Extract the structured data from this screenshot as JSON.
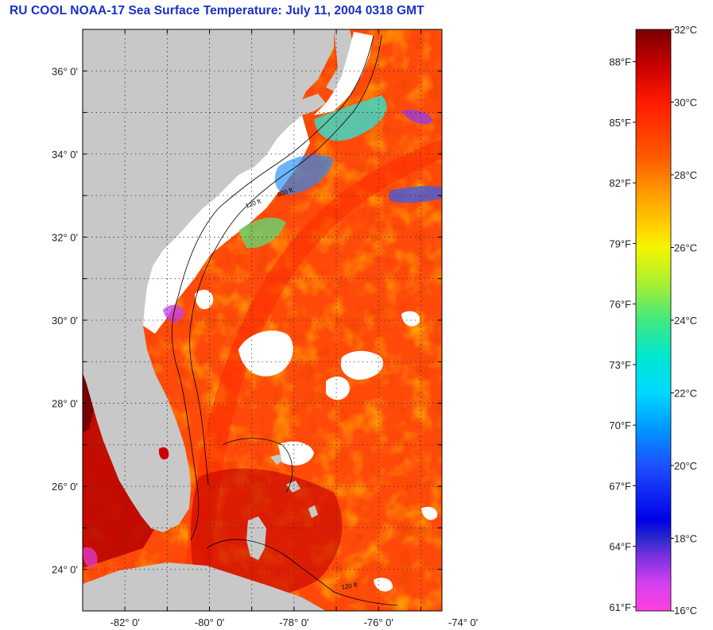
{
  "title": "RU COOL  NOAA-17  Sea Surface Temperature:  July 11, 2004 0318 GMT",
  "map": {
    "latitude_labels": [
      {
        "text": "36° 0'",
        "lat": 36
      },
      {
        "text": "34° 0'",
        "lat": 34
      },
      {
        "text": "32° 0'",
        "lat": 32
      },
      {
        "text": "30° 0'",
        "lat": 30
      },
      {
        "text": "28° 0'",
        "lat": 28
      },
      {
        "text": "26° 0'",
        "lat": 26
      },
      {
        "text": "24° 0'",
        "lat": 24
      }
    ],
    "longitude_labels": [
      {
        "text": "-82° 0'",
        "lon": -82
      },
      {
        "text": "-80° 0'",
        "lon": -80
      },
      {
        "text": "-78° 0'",
        "lon": -78
      },
      {
        "text": "-76° 0'",
        "lon": -76
      },
      {
        "text": "-74° 0'",
        "lon": -74
      }
    ],
    "lat_range": [
      23,
      37
    ],
    "lon_range": [
      -83,
      -74.5
    ],
    "grid": true,
    "land_color": "#c8c8c8",
    "cloud_color": "#ffffff",
    "contour_labels": [
      "120 ft",
      "600 ft"
    ]
  },
  "colorbar": {
    "celsius_labels": [
      {
        "text": "32°C",
        "value": 32
      },
      {
        "text": "30°C",
        "value": 30
      },
      {
        "text": "28°C",
        "value": 28
      },
      {
        "text": "26°C",
        "value": 26
      },
      {
        "text": "24°C",
        "value": 24
      },
      {
        "text": "22°C",
        "value": 22
      },
      {
        "text": "20°C",
        "value": 20
      },
      {
        "text": "18°C",
        "value": 18
      },
      {
        "text": "16°C",
        "value": 16
      }
    ],
    "fahrenheit_labels": [
      {
        "text": "88°F",
        "value": 88
      },
      {
        "text": "85°F",
        "value": 85
      },
      {
        "text": "82°F",
        "value": 82
      },
      {
        "text": "79°F",
        "value": 79
      },
      {
        "text": "76°F",
        "value": 76
      },
      {
        "text": "73°F",
        "value": 73
      },
      {
        "text": "70°F",
        "value": 70
      },
      {
        "text": "67°F",
        "value": 67
      },
      {
        "text": "64°F",
        "value": 64
      },
      {
        "text": "61°F",
        "value": 61
      }
    ],
    "range_c": [
      16,
      32
    ],
    "stops": [
      {
        "c": 32,
        "color": "#7a0000"
      },
      {
        "c": 31,
        "color": "#c80000"
      },
      {
        "c": 30,
        "color": "#ff1a00"
      },
      {
        "c": 28.5,
        "color": "#ff5a00"
      },
      {
        "c": 27.5,
        "color": "#ff9a00"
      },
      {
        "c": 26.5,
        "color": "#ffd500"
      },
      {
        "c": 26,
        "color": "#f5f500"
      },
      {
        "c": 25,
        "color": "#a8f030"
      },
      {
        "c": 24,
        "color": "#40e880"
      },
      {
        "c": 23,
        "color": "#00e6d0"
      },
      {
        "c": 22,
        "color": "#00d8ff"
      },
      {
        "c": 21,
        "color": "#0096ff"
      },
      {
        "c": 20,
        "color": "#1e50ff"
      },
      {
        "c": 18.5,
        "color": "#0000e6"
      },
      {
        "c": 18,
        "color": "#2a2acc"
      },
      {
        "c": 17.5,
        "color": "#7a30e0"
      },
      {
        "c": 16.8,
        "color": "#d040f0"
      },
      {
        "c": 16,
        "color": "#ff40e0"
      }
    ]
  }
}
